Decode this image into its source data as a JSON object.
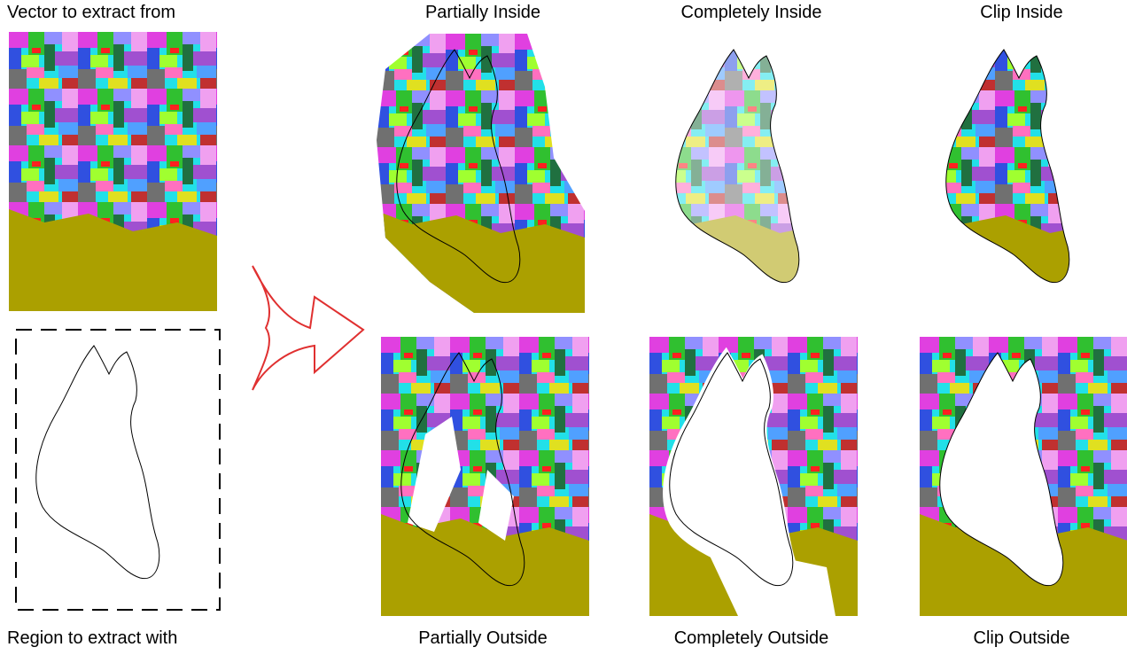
{
  "labels": {
    "source": "Vector to extract from",
    "region": "Region to extract with"
  },
  "panels": [
    {
      "title": "Partially Inside"
    },
    {
      "title": "Completely Inside"
    },
    {
      "title": "Clip Inside"
    },
    {
      "title": "Partially Outside"
    },
    {
      "title": "Completely Outside"
    },
    {
      "title": "Clip Outside"
    }
  ]
}
